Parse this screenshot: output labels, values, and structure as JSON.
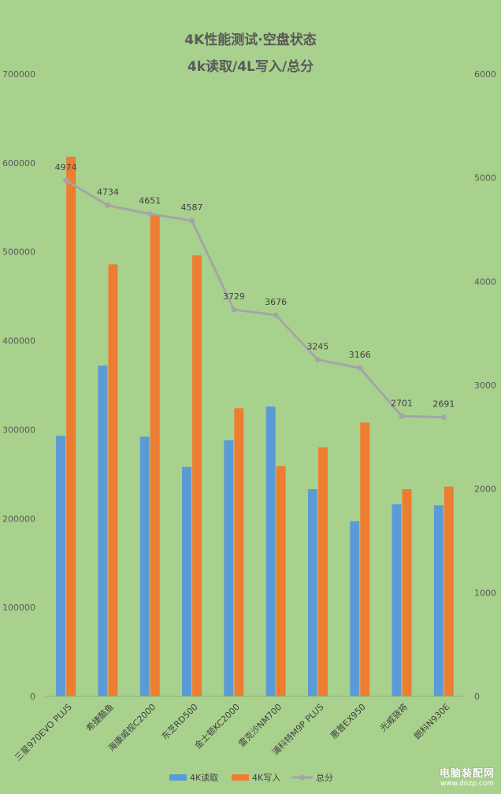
{
  "chart_data": {
    "type": "bar",
    "title": "4K性能测试·空盘状态",
    "subtitle": "4k读取/4L写入/总分",
    "categories": [
      "三星970EVO PLUS",
      "希捷酷鱼",
      "海康威视C2000",
      "东芝RD500",
      "金士顿KC2000",
      "雷克沙NM700",
      "浦科特M9P PLUS",
      "惠普EX950",
      "光威骁将",
      "朗科N930E"
    ],
    "series": [
      {
        "name": "4K读取",
        "type": "bar",
        "axis": "left",
        "color": "#5b9bd5",
        "values": [
          293000,
          372000,
          292000,
          258000,
          288000,
          326000,
          233000,
          197000,
          216000,
          215000
        ]
      },
      {
        "name": "4K写入",
        "type": "bar",
        "axis": "left",
        "color": "#ed7d31",
        "values": [
          607000,
          486000,
          541000,
          496000,
          324000,
          259000,
          280000,
          308000,
          233000,
          236000
        ]
      },
      {
        "name": "总分",
        "type": "line",
        "axis": "right",
        "color": "#a5a5a5",
        "values": [
          4974,
          4734,
          4651,
          4587,
          3729,
          3676,
          3245,
          3166,
          2701,
          2691
        ],
        "labels": [
          "4974",
          "4734",
          "4651",
          "4587",
          "3729",
          "3676",
          "3245",
          "3166",
          "2701",
          "2691"
        ]
      }
    ],
    "y_left": {
      "min": 0,
      "max": 700000,
      "ticks": [
        "0",
        "100000",
        "200000",
        "300000",
        "400000",
        "500000",
        "600000",
        "700000"
      ]
    },
    "y_right": {
      "min": 0,
      "max": 6000,
      "ticks": [
        "0",
        "1000",
        "2000",
        "3000",
        "4000",
        "5000",
        "6000"
      ]
    },
    "grid": false,
    "legend": "bottom"
  },
  "watermark": {
    "line1": "电脑装配网",
    "line2": "www.dnzp.com"
  }
}
